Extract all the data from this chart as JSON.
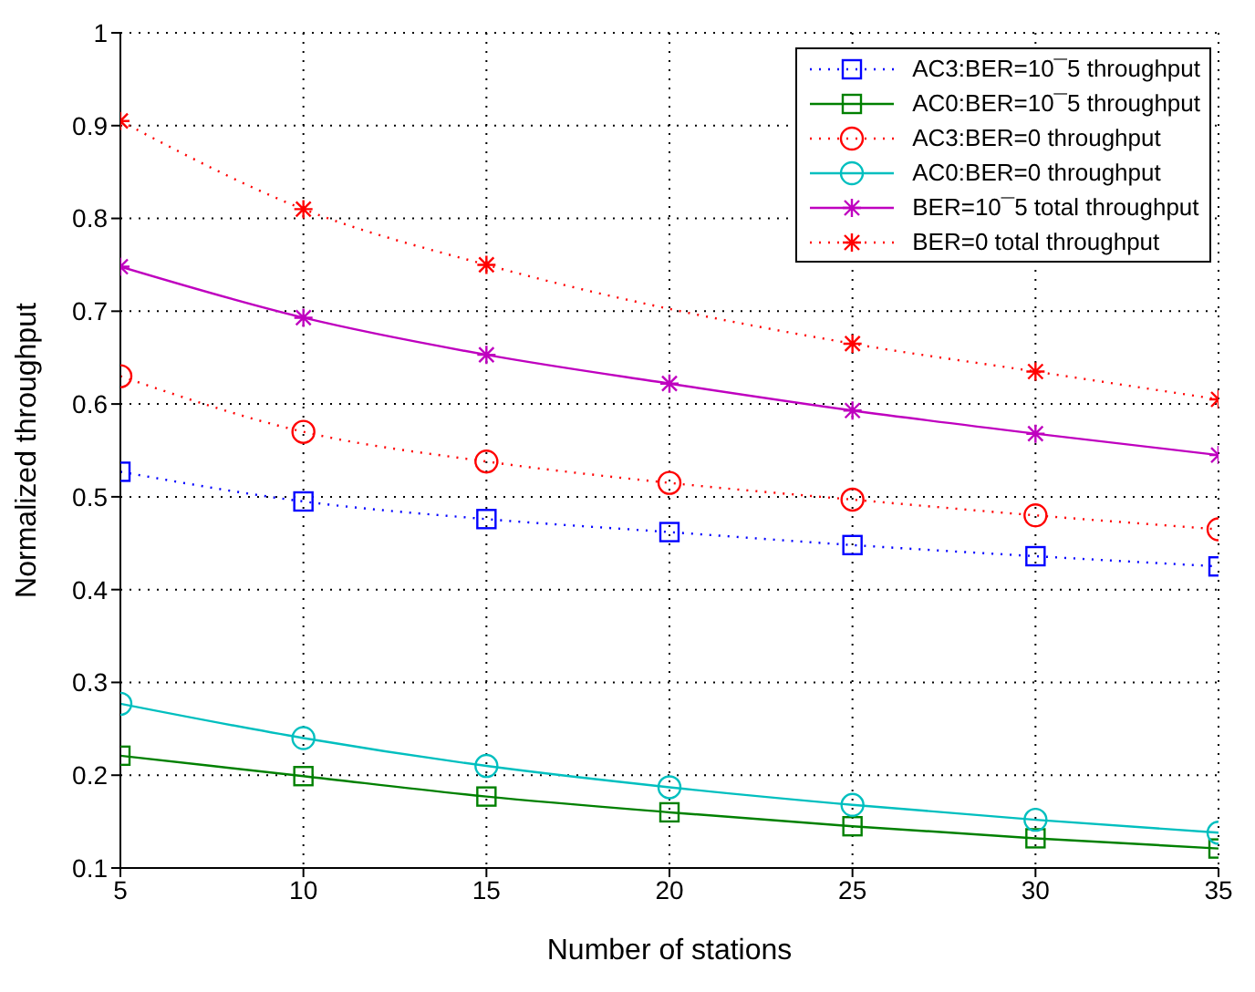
{
  "chart_data": {
    "type": "line",
    "xlabel": "Number of stations",
    "ylabel": "Normalized throughput",
    "x": [
      5,
      10,
      15,
      20,
      25,
      30,
      35
    ],
    "xlim": [
      5,
      35
    ],
    "xticks": [
      5,
      10,
      15,
      20,
      25,
      30,
      35
    ],
    "ylim": [
      0.1,
      1
    ],
    "yticks": [
      0.1,
      0.2,
      0.3,
      0.4,
      0.5,
      0.6,
      0.7,
      0.8,
      0.9,
      1
    ],
    "grid": true,
    "legend": "top right",
    "series": [
      {
        "name": "AC3:BER=10¯5 throughput",
        "color": "#0000ff",
        "marker": "square",
        "line_style": "dotted",
        "values": [
          0.527,
          0.495,
          0.476,
          0.462,
          0.448,
          0.436,
          0.425
        ]
      },
      {
        "name": "AC0:BER=10¯5 throughput",
        "color": "#008000",
        "marker": "square",
        "line_style": "solid",
        "values": [
          0.221,
          0.199,
          0.177,
          0.16,
          0.145,
          0.132,
          0.121
        ]
      },
      {
        "name": "AC3:BER=0 throughput",
        "color": "#ff0000",
        "marker": "circle",
        "line_style": "dotted",
        "values": [
          0.63,
          0.57,
          0.538,
          0.515,
          0.497,
          0.48,
          0.465
        ]
      },
      {
        "name": "AC0:BER=0 throughput",
        "color": "#00bfbf",
        "marker": "circle",
        "line_style": "solid",
        "values": [
          0.277,
          0.24,
          0.21,
          0.187,
          0.168,
          0.152,
          0.138
        ]
      },
      {
        "name": "BER=10¯5 total throughput",
        "color": "#bf00bf",
        "marker": "cross",
        "line_style": "solid",
        "values": [
          0.748,
          0.693,
          0.653,
          0.622,
          0.593,
          0.568,
          0.545
        ]
      },
      {
        "name": "BER=0 total throughput",
        "color": "#ff0000",
        "marker": "cross",
        "line_style": "dotted",
        "values": [
          0.905,
          0.81,
          0.75,
          null,
          0.665,
          0.635,
          0.605
        ]
      }
    ]
  }
}
